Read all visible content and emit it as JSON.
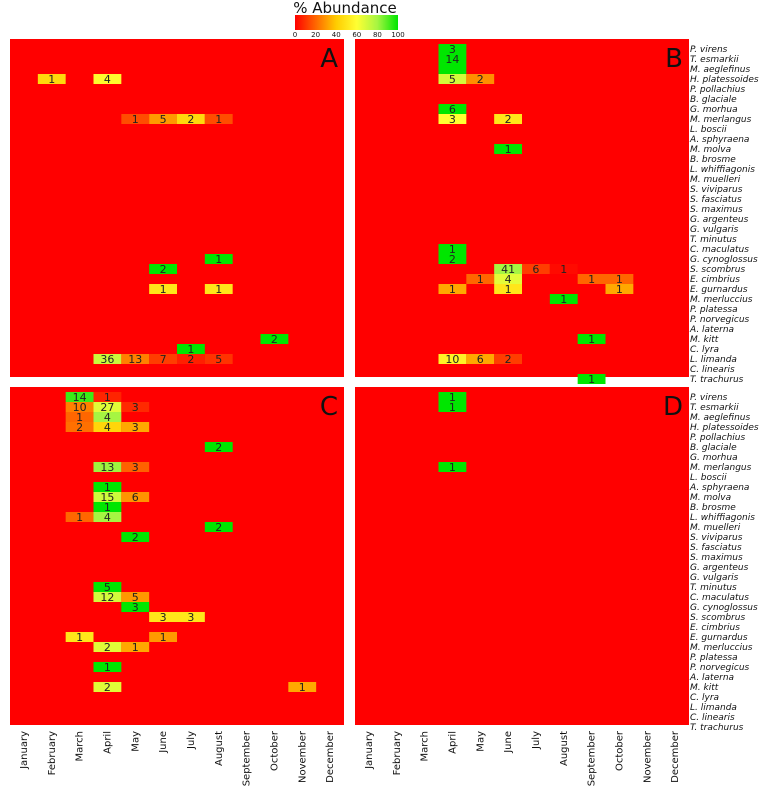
{
  "chart_data": {
    "type": "heatmap",
    "legend": {
      "title": "% Abundance",
      "ticks": [
        0,
        20,
        40,
        60,
        80,
        100
      ],
      "colors": [
        "#ff0000",
        "#ff6600",
        "#ffcc00",
        "#ffff33",
        "#a6f542",
        "#00e600"
      ]
    },
    "background_color": "#ff0000",
    "months": [
      "January",
      "February",
      "March",
      "April",
      "May",
      "June",
      "July",
      "August",
      "September",
      "October",
      "November",
      "December"
    ],
    "species": [
      "P. virens",
      "T. esmarkii",
      "M. aeglefinus",
      "H. platessoides",
      "P. pollachius",
      "B. glaciale",
      "G. morhua",
      "M. merlangus",
      "L. boscii",
      "A. sphyraena",
      "M. molva",
      "B. brosme",
      "L. whiffiagonis",
      "M. muelleri",
      "S. viviparus",
      "S. fasciatus",
      "S. maximus",
      "G. argenteus",
      "G. vulgaris",
      "T. minutus",
      "C. maculatus",
      "G. cynoglossus",
      "S. scombrus",
      "E. cimbrius",
      "E. gurnardus",
      "M. merluccius",
      "P. platessa",
      "P. norvegicus",
      "A. laterna",
      "M. kitt",
      "C. lyra",
      "L. limanda",
      "C. linearis",
      "T. trachurus"
    ],
    "panels": [
      {
        "letter": "A",
        "cells": [
          {
            "species": 3,
            "month": 1,
            "value": 1,
            "pct": 45
          },
          {
            "species": 3,
            "month": 3,
            "value": 4,
            "pct": 58
          },
          {
            "species": 7,
            "month": 4,
            "value": 1,
            "pct": 15
          },
          {
            "species": 7,
            "month": 5,
            "value": 5,
            "pct": 30
          },
          {
            "species": 7,
            "month": 6,
            "value": 2,
            "pct": 45
          },
          {
            "species": 7,
            "month": 7,
            "value": 1,
            "pct": 15
          },
          {
            "species": 21,
            "month": 7,
            "value": 1,
            "pct": 100
          },
          {
            "species": 22,
            "month": 5,
            "value": 2,
            "pct": 100
          },
          {
            "species": 24,
            "month": 5,
            "value": 1,
            "pct": 50
          },
          {
            "species": 24,
            "month": 7,
            "value": 1,
            "pct": 50
          },
          {
            "species": 29,
            "month": 9,
            "value": 2,
            "pct": 100
          },
          {
            "species": 30,
            "month": 6,
            "value": 1,
            "pct": 100
          },
          {
            "species": 31,
            "month": 3,
            "value": 36,
            "pct": 72
          },
          {
            "species": 31,
            "month": 4,
            "value": 13,
            "pct": 25
          },
          {
            "species": 31,
            "month": 5,
            "value": 7,
            "pct": 12
          },
          {
            "species": 31,
            "month": 6,
            "value": 2,
            "pct": 6
          },
          {
            "species": 31,
            "month": 7,
            "value": 5,
            "pct": 10
          }
        ]
      },
      {
        "letter": "B",
        "cells": [
          {
            "species": 0,
            "month": 3,
            "value": 3,
            "pct": 100
          },
          {
            "species": 1,
            "month": 3,
            "value": 14,
            "pct": 100
          },
          {
            "species": 2,
            "month": 3,
            "value": null,
            "pct": 100
          },
          {
            "species": 3,
            "month": 3,
            "value": 5,
            "pct": 70
          },
          {
            "species": 3,
            "month": 4,
            "value": 2,
            "pct": 28
          },
          {
            "species": 6,
            "month": 3,
            "value": 6,
            "pct": 100
          },
          {
            "species": 7,
            "month": 3,
            "value": 3,
            "pct": 60
          },
          {
            "species": 7,
            "month": 5,
            "value": 2,
            "pct": 50
          },
          {
            "species": 10,
            "month": 5,
            "value": 1,
            "pct": 100
          },
          {
            "species": 20,
            "month": 3,
            "value": 1,
            "pct": 100
          },
          {
            "species": 21,
            "month": 3,
            "value": 2,
            "pct": 100
          },
          {
            "species": 22,
            "month": 5,
            "value": 41,
            "pct": 80
          },
          {
            "species": 22,
            "month": 6,
            "value": 6,
            "pct": 12
          },
          {
            "species": 22,
            "month": 7,
            "value": 1,
            "pct": 2
          },
          {
            "species": 23,
            "month": 4,
            "value": 1,
            "pct": 20
          },
          {
            "species": 23,
            "month": 5,
            "value": 4,
            "pct": 66
          },
          {
            "species": 23,
            "month": 8,
            "value": 1,
            "pct": 20
          },
          {
            "species": 23,
            "month": 9,
            "value": 1,
            "pct": 20
          },
          {
            "species": 24,
            "month": 3,
            "value": 1,
            "pct": 33
          },
          {
            "species": 24,
            "month": 5,
            "value": 1,
            "pct": 50
          },
          {
            "species": 24,
            "month": 9,
            "value": 1,
            "pct": 33
          },
          {
            "species": 25,
            "month": 7,
            "value": 1,
            "pct": 100
          },
          {
            "species": 29,
            "month": 8,
            "value": 1,
            "pct": 100
          },
          {
            "species": 31,
            "month": 3,
            "value": 10,
            "pct": 55
          },
          {
            "species": 31,
            "month": 4,
            "value": 6,
            "pct": 33
          },
          {
            "species": 31,
            "month": 5,
            "value": 2,
            "pct": 12
          },
          {
            "species": 33,
            "month": 8,
            "value": 1,
            "pct": 100
          }
        ]
      },
      {
        "letter": "C",
        "cells": [
          {
            "species": 0,
            "month": 2,
            "value": 14,
            "pct": 93
          },
          {
            "species": 0,
            "month": 3,
            "value": 1,
            "pct": 7
          },
          {
            "species": 1,
            "month": 2,
            "value": 10,
            "pct": 25
          },
          {
            "species": 1,
            "month": 3,
            "value": 27,
            "pct": 67
          },
          {
            "species": 1,
            "month": 4,
            "value": 3,
            "pct": 8
          },
          {
            "species": 2,
            "month": 2,
            "value": 1,
            "pct": 20
          },
          {
            "species": 2,
            "month": 3,
            "value": 4,
            "pct": 80
          },
          {
            "species": 3,
            "month": 2,
            "value": 2,
            "pct": 22
          },
          {
            "species": 3,
            "month": 3,
            "value": 4,
            "pct": 44
          },
          {
            "species": 3,
            "month": 4,
            "value": 3,
            "pct": 33
          },
          {
            "species": 5,
            "month": 7,
            "value": 2,
            "pct": 100
          },
          {
            "species": 7,
            "month": 3,
            "value": 13,
            "pct": 81
          },
          {
            "species": 7,
            "month": 4,
            "value": 3,
            "pct": 19
          },
          {
            "species": 9,
            "month": 3,
            "value": 1,
            "pct": 100
          },
          {
            "species": 10,
            "month": 3,
            "value": 15,
            "pct": 71
          },
          {
            "species": 10,
            "month": 4,
            "value": 6,
            "pct": 29
          },
          {
            "species": 11,
            "month": 3,
            "value": 1,
            "pct": 100
          },
          {
            "species": 12,
            "month": 2,
            "value": 1,
            "pct": 20
          },
          {
            "species": 12,
            "month": 3,
            "value": 4,
            "pct": 80
          },
          {
            "species": 13,
            "month": 7,
            "value": 2,
            "pct": 100
          },
          {
            "species": 14,
            "month": 4,
            "value": 2,
            "pct": 100
          },
          {
            "species": 19,
            "month": 3,
            "value": 5,
            "pct": 100
          },
          {
            "species": 20,
            "month": 3,
            "value": 12,
            "pct": 70
          },
          {
            "species": 20,
            "month": 4,
            "value": 5,
            "pct": 30
          },
          {
            "species": 21,
            "month": 4,
            "value": 3,
            "pct": 100
          },
          {
            "species": 22,
            "month": 5,
            "value": 3,
            "pct": 50
          },
          {
            "species": 22,
            "month": 6,
            "value": 3,
            "pct": 50
          },
          {
            "species": 24,
            "month": 2,
            "value": 1,
            "pct": 50
          },
          {
            "species": 24,
            "month": 5,
            "value": 1,
            "pct": 30
          },
          {
            "species": 25,
            "month": 3,
            "value": 2,
            "pct": 67
          },
          {
            "species": 25,
            "month": 4,
            "value": 1,
            "pct": 33
          },
          {
            "species": 27,
            "month": 3,
            "value": 1,
            "pct": 100
          },
          {
            "species": 29,
            "month": 3,
            "value": 2,
            "pct": 67
          },
          {
            "species": 29,
            "month": 10,
            "value": 1,
            "pct": 33
          }
        ]
      },
      {
        "letter": "D",
        "cells": [
          {
            "species": 0,
            "month": 3,
            "value": 1,
            "pct": 100
          },
          {
            "species": 1,
            "month": 3,
            "value": 1,
            "pct": 100
          },
          {
            "species": 7,
            "month": 3,
            "value": 1,
            "pct": 100
          }
        ]
      }
    ]
  }
}
